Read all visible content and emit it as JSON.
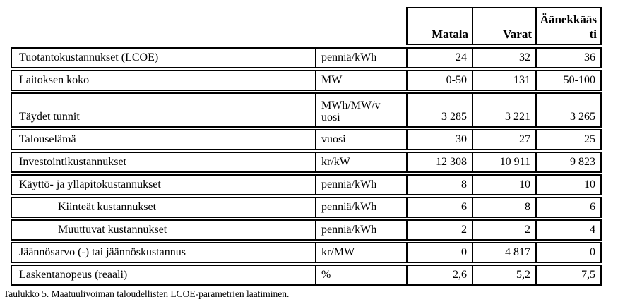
{
  "header": {
    "columns": [
      "Matala",
      "Varat",
      "Äänekkäästi"
    ]
  },
  "table": {
    "rows": [
      {
        "label": "Tuotantokustannukset (LCOE)",
        "unit": "penniä/kWh",
        "values": [
          "24",
          "32",
          "36"
        ]
      },
      {
        "label": "Laitoksen koko",
        "unit": "MW",
        "values": [
          "0-50",
          "131",
          "50-100"
        ]
      },
      {
        "label": "Täydet tunnit",
        "unit": "MWh/MW/vuosi",
        "values": [
          "3 285",
          "3 221",
          "3 265"
        ]
      },
      {
        "label": "Talouselämä",
        "unit": "vuosi",
        "values": [
          "30",
          "27",
          "25"
        ]
      },
      {
        "label": "Investointikustannukset",
        "unit": "kr/kW",
        "values": [
          "12 308",
          "10 911",
          "9 823"
        ]
      },
      {
        "label": "Käyttö- ja ylläpitokustannukset",
        "unit": "penniä/kWh",
        "values": [
          "8",
          "10",
          "10"
        ]
      },
      {
        "label": "Kiinteät kustannukset",
        "unit": "penniä/kWh",
        "values": [
          "6",
          "8",
          "6"
        ]
      },
      {
        "label": "Muuttuvat kustannukset",
        "unit": "penniä/kWh",
        "values": [
          "2",
          "2",
          "4"
        ]
      },
      {
        "label": "Jäännösarvo (-) tai jäännöskustannus",
        "unit": "kr/MW",
        "values": [
          "0",
          "4 817",
          "0"
        ]
      },
      {
        "label": "Laskentanopeus (reaali)",
        "unit": "%",
        "values": [
          "2,6",
          "5,2",
          "7,5"
        ]
      }
    ]
  },
  "caption": {
    "text": "Taulukko 5. Maatuulivoiman taloudellisten LCOE-parametrien laatiminen."
  }
}
